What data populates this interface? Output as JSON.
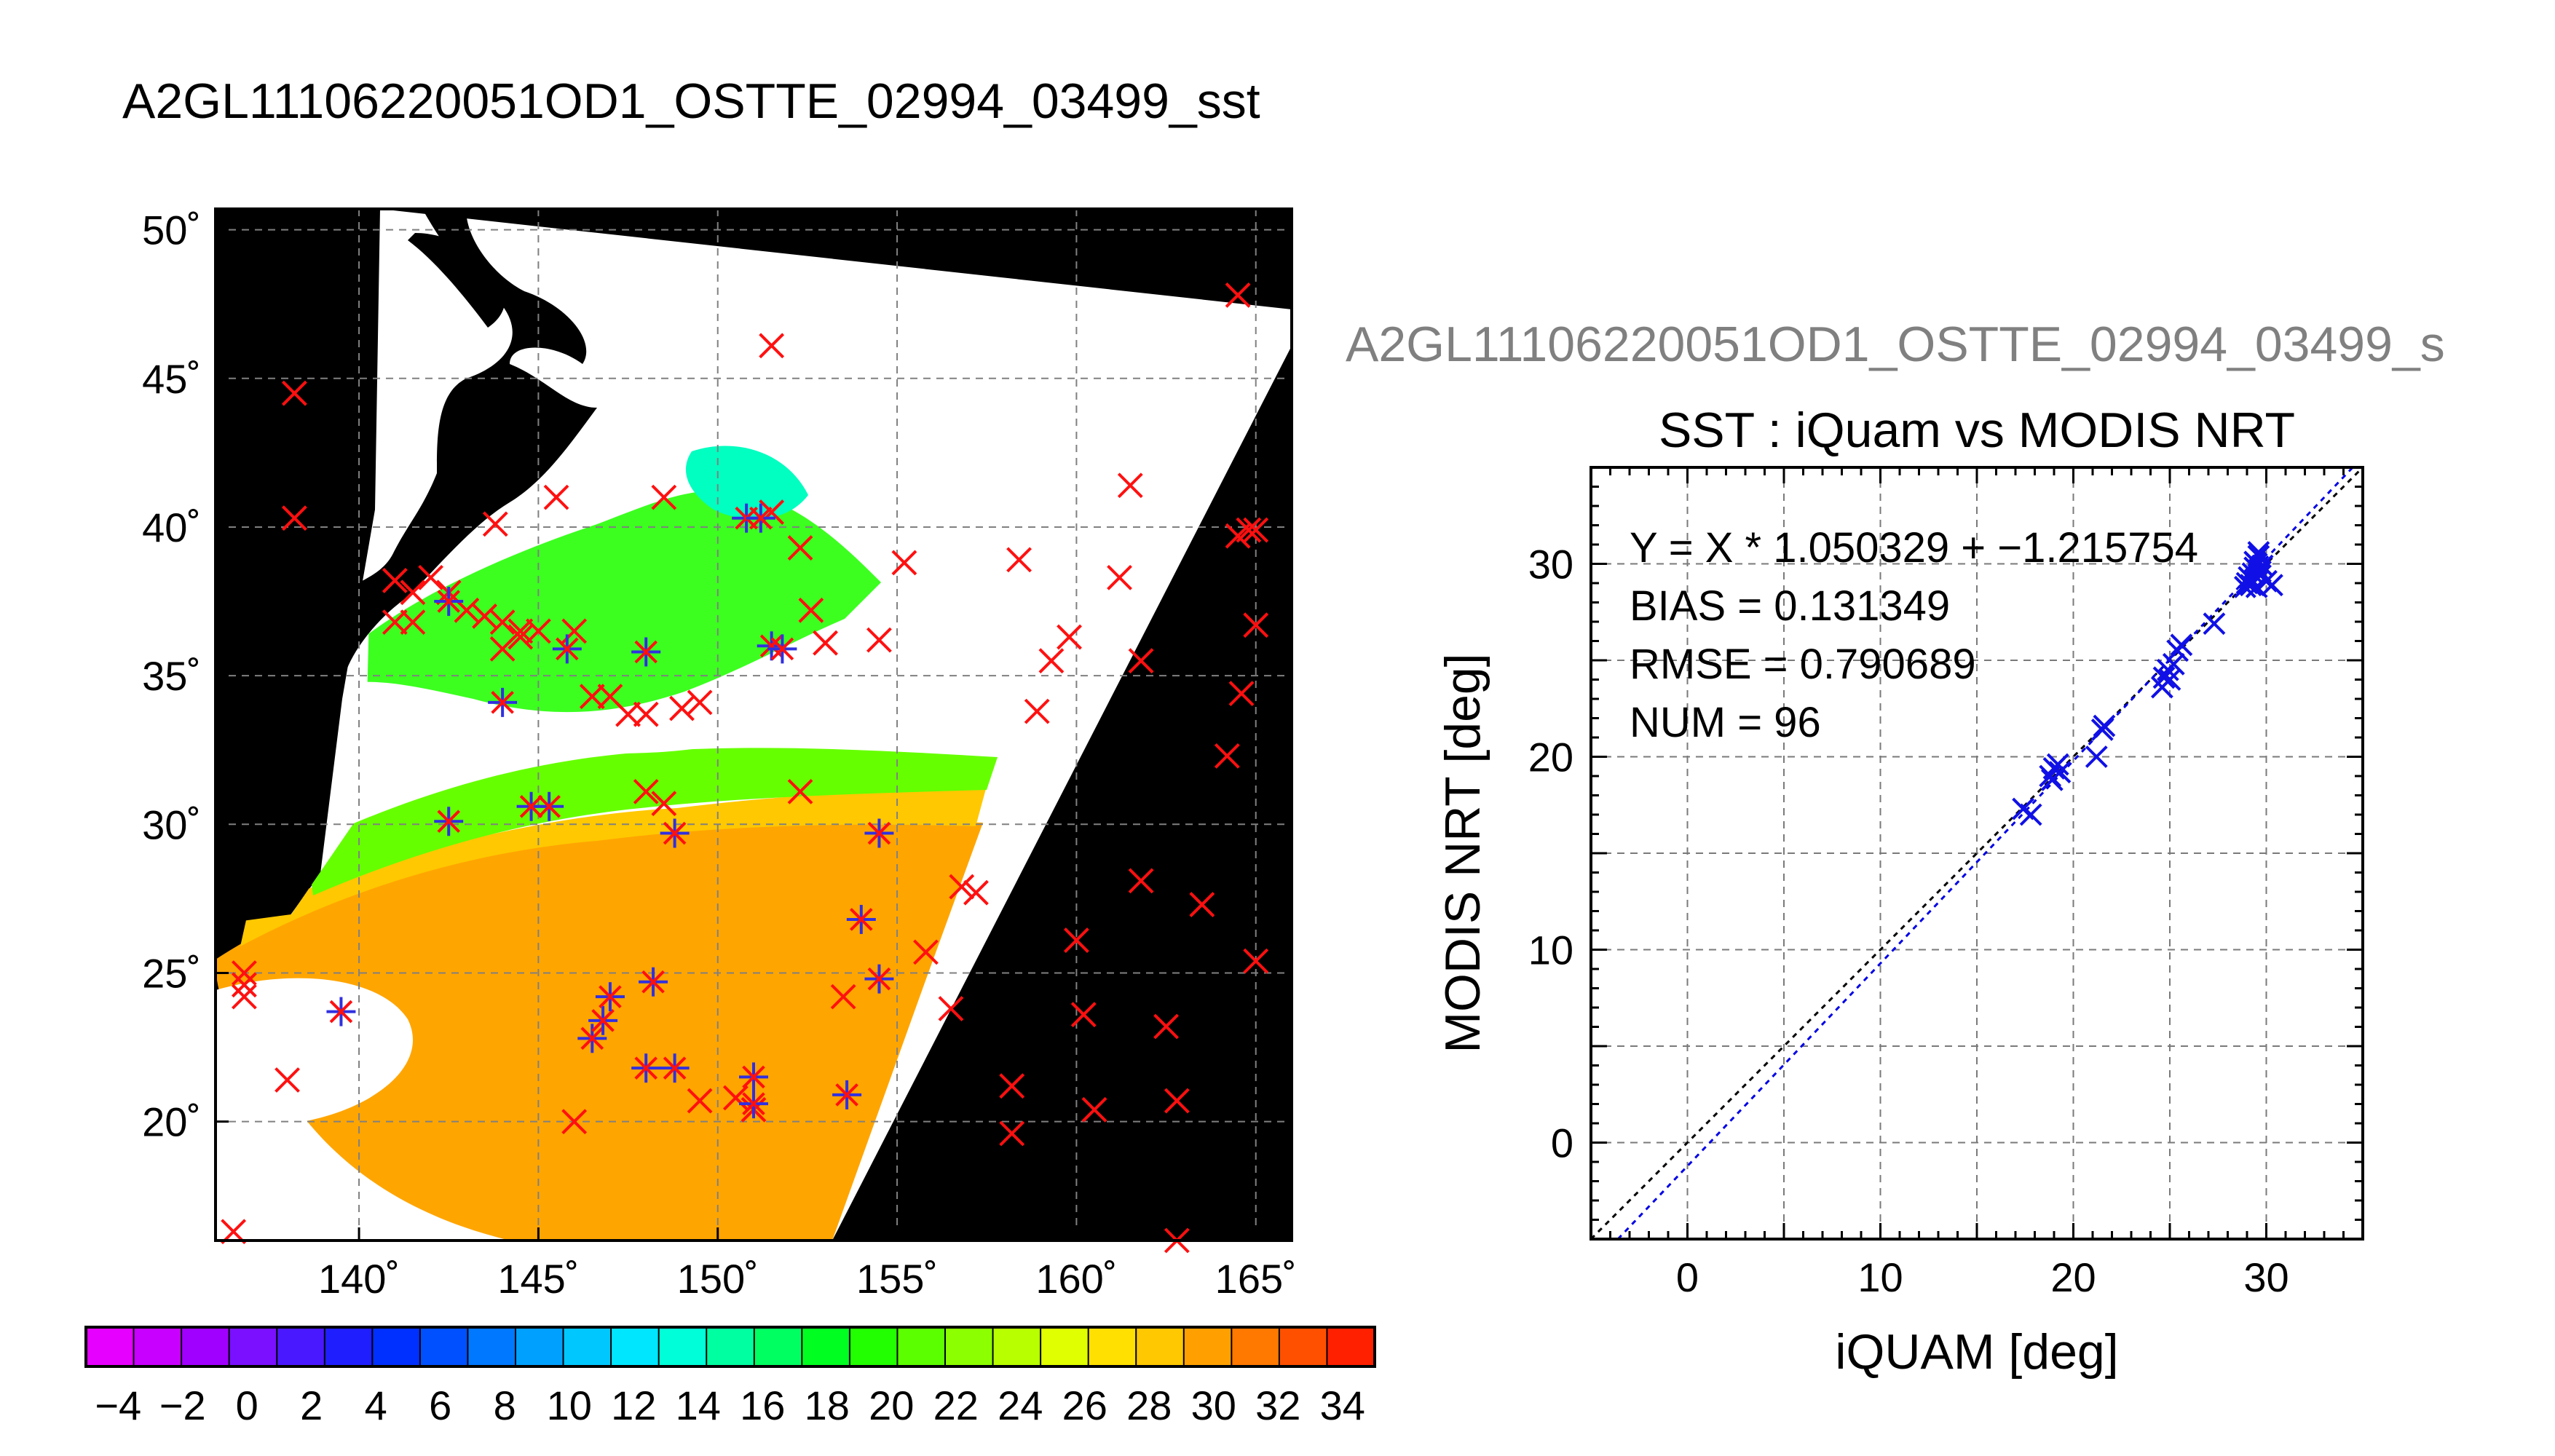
{
  "map_title": "A2GL11106220051OD1_OSTTE_02994_03499_sst",
  "scatter_header": "A2GL11106220051OD1_OSTTE_02994_03499_s",
  "colorbar": {
    "tick_labels": [
      "−4",
      "−2",
      "0",
      "2",
      "4",
      "6",
      "8",
      "10",
      "12",
      "14",
      "16",
      "18",
      "20",
      "22",
      "24",
      "26",
      "28",
      "30",
      "32",
      "34"
    ],
    "colors": [
      "#e600ff",
      "#c800ff",
      "#a000ff",
      "#7a10ff",
      "#4a18ff",
      "#1e1eff",
      "#0030ff",
      "#0050ff",
      "#0078ff",
      "#00a0ff",
      "#00c8ff",
      "#00e6ff",
      "#00ffd8",
      "#00ffa0",
      "#00ff60",
      "#00ff20",
      "#22ff00",
      "#5cff00",
      "#8cff00",
      "#b8ff00",
      "#e0ff00",
      "#ffe000",
      "#ffc800",
      "#ffa000",
      "#ff7800",
      "#ff5000",
      "#ff2000"
    ]
  },
  "stats": {
    "line1": "Y = X * 1.050329 + −1.215754",
    "line2": "BIAS = 0.131349",
    "line3": "RMSE = 0.790689",
    "line4": "NUM = 96"
  },
  "chart_data": [
    {
      "type": "map",
      "title": "A2GL11106220051OD1_OSTTE_02994_03499_sst",
      "x_ticks": [
        "140˚",
        "145˚",
        "150˚",
        "155˚",
        "160˚",
        "165˚"
      ],
      "y_ticks": [
        "20˚",
        "25˚",
        "30˚",
        "35˚",
        "40˚",
        "45˚",
        "50˚"
      ],
      "xlim": [
        136,
        166
      ],
      "ylim": [
        16,
        50.7
      ],
      "color_scale": [
        -5,
        35
      ],
      "grid": true,
      "points_red_x": [
        [
          136.5,
          16.3
        ],
        [
          138,
          21.4
        ],
        [
          136.8,
          24.2
        ],
        [
          136.8,
          24.6
        ],
        [
          136.8,
          25
        ],
        [
          138.2,
          44.5
        ],
        [
          138.2,
          40.3
        ],
        [
          141,
          38.2
        ],
        [
          141.5,
          37.8
        ],
        [
          141.5,
          36.8
        ],
        [
          141,
          36.8
        ],
        [
          142.5,
          37.8
        ],
        [
          143,
          37.2
        ],
        [
          143.5,
          37
        ],
        [
          144,
          36.8
        ],
        [
          144.5,
          36.5
        ],
        [
          142,
          38.3
        ],
        [
          143.8,
          40.1
        ],
        [
          145.5,
          41
        ],
        [
          148.5,
          41
        ],
        [
          151.5,
          40.5
        ],
        [
          152.3,
          39.3
        ],
        [
          151.5,
          46.1
        ],
        [
          155.2,
          38.8
        ],
        [
          158.4,
          38.9
        ],
        [
          159.8,
          36.3
        ],
        [
          159.3,
          35.5
        ],
        [
          158.9,
          33.8
        ],
        [
          161.2,
          38.3
        ],
        [
          161.5,
          41.4
        ],
        [
          161.8,
          35.5
        ],
        [
          164.5,
          39.7
        ],
        [
          164.8,
          39.9
        ],
        [
          165,
          39.9
        ],
        [
          165,
          36.7
        ],
        [
          164.6,
          34.4
        ],
        [
          164.2,
          32.3
        ],
        [
          164.5,
          47.8
        ],
        [
          153,
          36.1
        ],
        [
          152.6,
          37.2
        ],
        [
          154.5,
          36.2
        ],
        [
          146.5,
          34.3
        ],
        [
          147,
          34.3
        ],
        [
          147.5,
          33.7
        ],
        [
          148,
          33.7
        ],
        [
          149,
          33.9
        ],
        [
          149.5,
          34.1
        ],
        [
          148,
          31.1
        ],
        [
          148.5,
          30.7
        ],
        [
          152.3,
          31.1
        ],
        [
          156.8,
          27.9
        ],
        [
          157.2,
          27.7
        ],
        [
          155.8,
          25.7
        ],
        [
          156.5,
          23.8
        ],
        [
          160,
          26.1
        ],
        [
          161.8,
          28.1
        ],
        [
          163.5,
          27.3
        ],
        [
          165,
          25.4
        ],
        [
          160.2,
          23.6
        ],
        [
          162.5,
          23.2
        ],
        [
          158.2,
          21.2
        ],
        [
          158.2,
          19.6
        ],
        [
          160.5,
          20.4
        ],
        [
          162.8,
          20.7
        ],
        [
          162.8,
          16
        ],
        [
          149.5,
          20.7
        ],
        [
          150.5,
          20.8
        ],
        [
          151,
          20.4
        ],
        [
          153.5,
          24.2
        ],
        [
          146,
          20
        ],
        [
          144,
          35.9
        ],
        [
          144.5,
          36.3
        ],
        [
          145,
          36.5
        ],
        [
          146,
          36.5
        ]
      ],
      "points_blue_star": [
        [
          139.5,
          23.7
        ],
        [
          142.5,
          30.1
        ],
        [
          144,
          34.1
        ],
        [
          144.8,
          30.6
        ],
        [
          145.3,
          30.6
        ],
        [
          145.8,
          35.9
        ],
        [
          146.5,
          22.8
        ],
        [
          146.8,
          23.4
        ],
        [
          147,
          24.2
        ],
        [
          148,
          21.8
        ],
        [
          148.2,
          24.7
        ],
        [
          148.8,
          21.8
        ],
        [
          148.8,
          29.7
        ],
        [
          151,
          21.5
        ],
        [
          151,
          20.6
        ],
        [
          150.8,
          40.3
        ],
        [
          151.2,
          40.3
        ],
        [
          151.5,
          36
        ],
        [
          151.8,
          35.9
        ],
        [
          154,
          26.8
        ],
        [
          154.5,
          29.7
        ],
        [
          154.5,
          24.8
        ],
        [
          153.6,
          20.9
        ],
        [
          148,
          35.8
        ],
        [
          142.5,
          37.5
        ]
      ]
    },
    {
      "type": "scatter",
      "title": "SST : iQuam vs MODIS NRT",
      "xlabel": "iQUAM [deg]",
      "ylabel": "MODIS NRT [deg]",
      "xlim": [
        -5,
        35
      ],
      "ylim": [
        -5,
        35
      ],
      "x_ticks": [
        0,
        10,
        20,
        30
      ],
      "y_ticks": [
        0,
        10,
        20,
        30
      ],
      "grid": true,
      "fit": {
        "slope": 1.050329,
        "intercept": -1.215754
      },
      "x": [
        17.4,
        17.8,
        18.8,
        19.0,
        19.2,
        18.9,
        19.3,
        21.2,
        21.5,
        21.6,
        24.6,
        24.7,
        24.9,
        25.0,
        25.2,
        25.4,
        25.6,
        27.3,
        28.9,
        29.0,
        29.1,
        29.2,
        29.3,
        29.4,
        29.5,
        29.6,
        29.7,
        29.8,
        29.5,
        29.6,
        30.0,
        30.3,
        29.4,
        29.7
      ],
      "y": [
        17.3,
        17.0,
        19.0,
        19.4,
        19.6,
        18.8,
        19.2,
        20.0,
        21.4,
        21.6,
        23.6,
        24.1,
        24.5,
        24.0,
        24.8,
        25.5,
        25.8,
        26.9,
        28.8,
        29.0,
        29.3,
        28.9,
        29.5,
        29.8,
        30.0,
        30.4,
        29.6,
        29.9,
        28.8,
        30.6,
        29.1,
        28.9,
        30.1,
        29.4
      ]
    }
  ]
}
